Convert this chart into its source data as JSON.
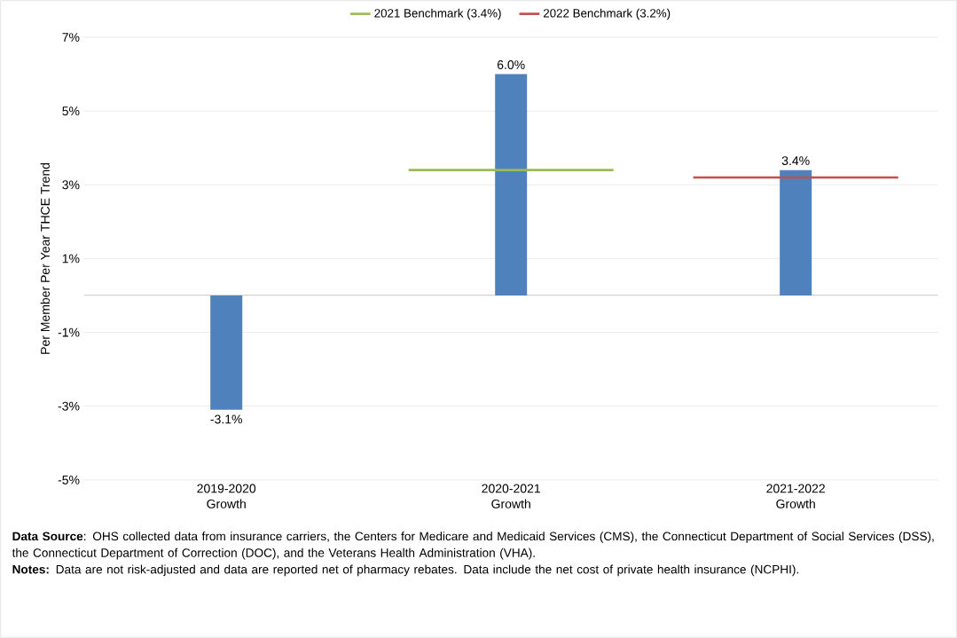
{
  "chart_data": {
    "type": "bar",
    "categories": [
      "2019-2020 Growth",
      "2020-2021 Growth",
      "2021-2022 Growth"
    ],
    "series": [
      {
        "color": "#4f81bd",
        "values": [
          -3.1,
          6.0,
          3.4
        ],
        "value_labels": [
          "-3.1%",
          "6.0%",
          "3.4%"
        ]
      }
    ],
    "ref_lines": [
      {
        "axis": "y",
        "value": 3.4,
        "label": "2021 Benchmark (3.4%)",
        "color": "#9bbb59"
      },
      {
        "axis": "y",
        "value": 3.2,
        "label": "2022 Benchmark (3.2%)",
        "color": "#c0504d"
      }
    ],
    "ylabel": "Per Member Per Year THCE Trend",
    "ylim": [
      -5,
      7
    ],
    "yticks": [
      {
        "value": -5,
        "label": "-5%"
      },
      {
        "value": -3,
        "label": "-3%"
      },
      {
        "value": -1,
        "label": "-1%"
      },
      {
        "value": 1,
        "label": "1%"
      },
      {
        "value": 3,
        "label": "3%"
      },
      {
        "value": 5,
        "label": "5%"
      },
      {
        "value": 7,
        "label": "7%"
      }
    ],
    "grid": "y",
    "legend": "top",
    "annotations": [
      "**Data Source**: OHS collected data from insurance carriers, the Centers for Medicare and Medicaid Services (CMS), the Connecticut Department of Social Services (DSS), the Connecticut Department of Correction (DOC), and the Veterans Health Administration (VHA).",
      "**Notes:** Data are not risk-adjusted and data are reported net of pharmacy rebates. Data include the net cost of private health insurance (NCPHI)."
    ]
  }
}
